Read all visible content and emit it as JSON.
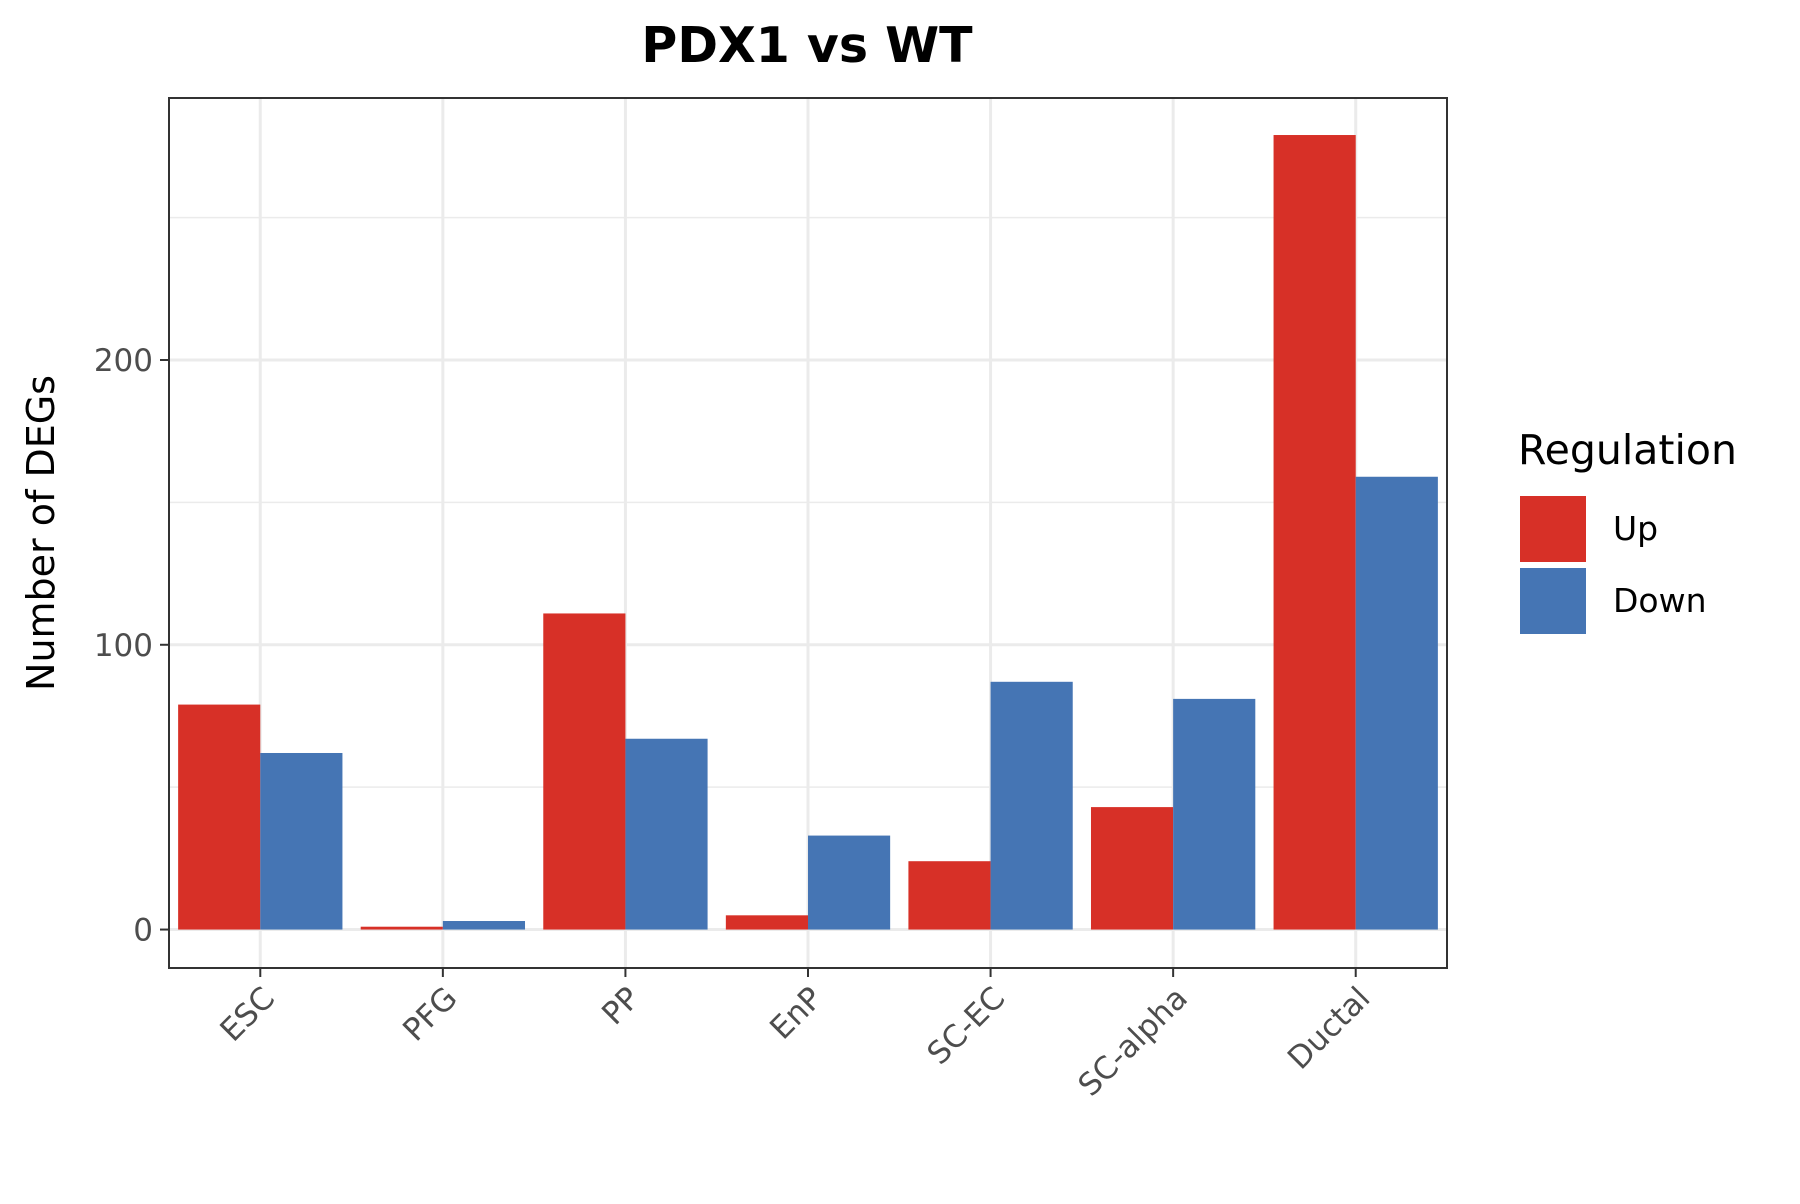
{
  "chart_data": {
    "type": "bar",
    "title": "PDX1 vs WT",
    "xlabel": "",
    "ylabel": "Number of DEGs",
    "categories": [
      "ESC",
      "PFG",
      "PP",
      "EnP",
      "SC-EC",
      "SC-alpha",
      "Ductal"
    ],
    "series": [
      {
        "name": "Up",
        "color": "#d73027",
        "values": [
          79,
          1,
          111,
          5,
          24,
          43,
          279
        ]
      },
      {
        "name": "Down",
        "color": "#4575b4",
        "values": [
          62,
          3,
          67,
          33,
          87,
          81,
          159
        ]
      }
    ],
    "ylim": [
      -13.5,
      292
    ],
    "yticks": [
      0,
      100,
      200
    ],
    "grid": true,
    "legend": {
      "title": "Regulation",
      "placement": "right"
    }
  }
}
